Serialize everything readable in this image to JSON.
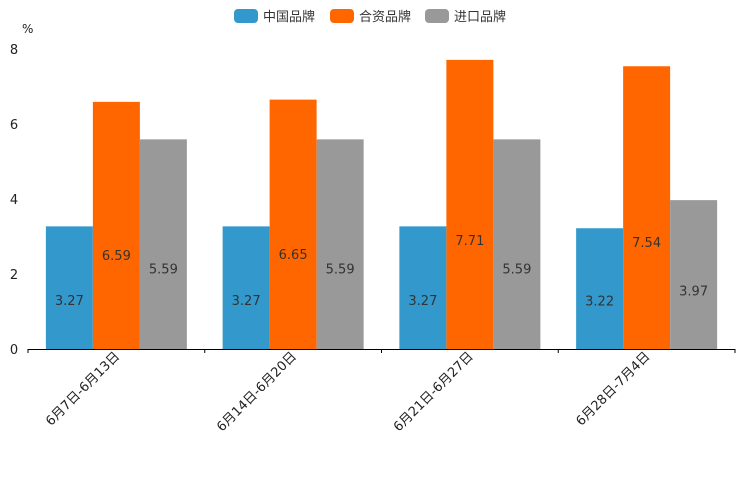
{
  "chart_data": {
    "type": "bar",
    "title": "",
    "ylabel": "%",
    "xlabel": "",
    "ylim": [
      0,
      8
    ],
    "yticks": [
      0,
      2,
      4,
      6,
      8
    ],
    "grid": false,
    "legend_position": "top-center",
    "categories": [
      "6月7日-6月13日",
      "6月14日-6月20日",
      "6月21日-6月27日",
      "6月28日-7月4日"
    ],
    "series": [
      {
        "name": "中国品牌",
        "color": "#3399cc",
        "values": [
          3.27,
          3.27,
          3.27,
          3.22
        ],
        "labels": [
          "3.27",
          "3.27",
          "3.27",
          "3.22"
        ]
      },
      {
        "name": "合资品牌",
        "color": "#ff6600",
        "values": [
          6.59,
          6.65,
          7.71,
          7.54
        ],
        "labels": [
          "6.59",
          "6.65",
          "7.71",
          "7.54"
        ]
      },
      {
        "name": "进口品牌",
        "color": "#999999",
        "values": [
          5.59,
          5.59,
          5.59,
          3.97
        ],
        "labels": [
          "5.59",
          "5.59",
          "5.59",
          "3.97"
        ]
      }
    ]
  }
}
